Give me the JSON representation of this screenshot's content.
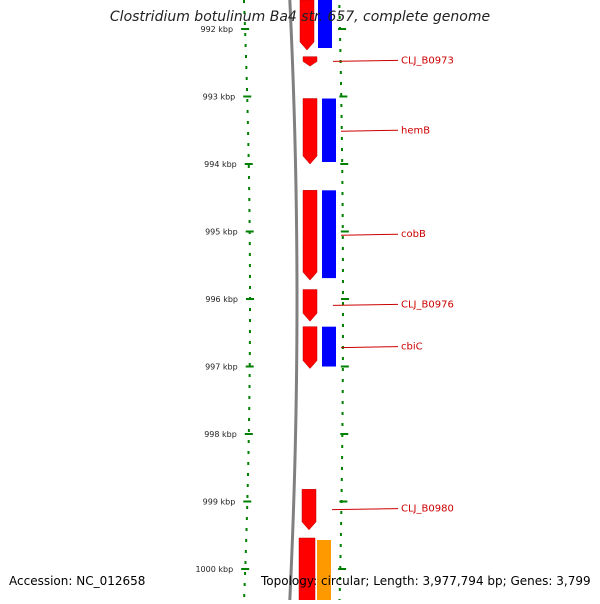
{
  "title": "Clostridium botulinum Ba4 str. 657, complete genome",
  "ruler": {
    "unit": "kbp",
    "ticks": [
      {
        "kbp": 992,
        "label": "992 kbp"
      },
      {
        "kbp": 993,
        "label": "993 kbp"
      },
      {
        "kbp": 994,
        "label": "994 kbp"
      },
      {
        "kbp": 995,
        "label": "995 kbp"
      },
      {
        "kbp": 996,
        "label": "996 kbp"
      },
      {
        "kbp": 997,
        "label": "997 kbp"
      },
      {
        "kbp": 998,
        "label": "998 kbp"
      },
      {
        "kbp": 999,
        "label": "999 kbp"
      },
      {
        "kbp": 1000,
        "label": "1000 kbp"
      }
    ]
  },
  "genes": [
    {
      "label": "CLJ_B0973",
      "start_kbp": 992.41,
      "end_kbp": 992.55,
      "color": "#ff0000"
    },
    {
      "label": "hemB",
      "start_kbp": 993.03,
      "end_kbp": 994.0,
      "color": "#ff0000",
      "cds_color": "#0000ff"
    },
    {
      "label": "cobB",
      "start_kbp": 994.39,
      "end_kbp": 995.72,
      "color": "#ff0000",
      "cds_color": "#0000ff"
    },
    {
      "label": "CLJ_B0976",
      "start_kbp": 995.86,
      "end_kbp": 996.33,
      "color": "#ff0000"
    },
    {
      "label": "cbiC",
      "start_kbp": 996.41,
      "end_kbp": 997.03,
      "color": "#ff0000",
      "cds_color": "#0000ff"
    },
    {
      "label": "CLJ_B0980",
      "start_kbp": 998.82,
      "end_kbp": 999.42,
      "color": "#ff0000"
    }
  ],
  "colors": {
    "gene": "#ff0000",
    "cds": "#0000ff",
    "other_feature": "#ff9900",
    "label": "#cc0000",
    "gc_track": "#008000",
    "backbone": "#808080"
  },
  "footer": {
    "accession": "Accession: NC_012658",
    "topology": "Topology: circular; Length: 3,977,794 bp; Genes: 3,799"
  }
}
